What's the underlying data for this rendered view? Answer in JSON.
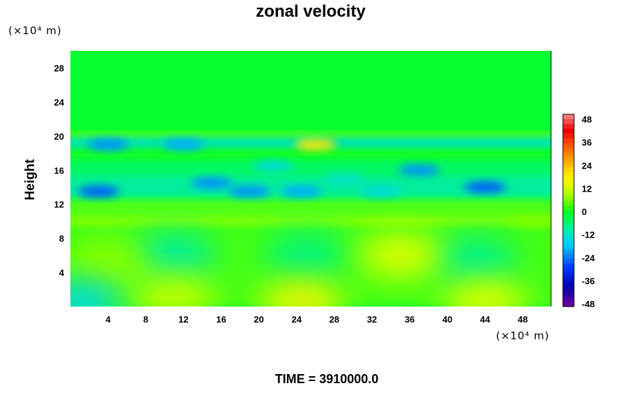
{
  "chart_data": {
    "type": "heatmap",
    "title": "zonal velocity",
    "xlabel": "",
    "ylabel": "Height",
    "x_unit": "(×10⁴ m)",
    "y_unit": "(×10⁴ m)",
    "x_ticks": [
      4,
      8,
      12,
      16,
      20,
      24,
      28,
      32,
      36,
      40,
      44,
      48
    ],
    "y_ticks": [
      4,
      8,
      12,
      16,
      20,
      24,
      28
    ],
    "xlim": [
      0,
      51
    ],
    "ylim": [
      0,
      30
    ],
    "colorbar": {
      "ticks": [
        48,
        36,
        24,
        12,
        0,
        -12,
        -24,
        -36,
        -48
      ],
      "range": [
        -48,
        48
      ]
    },
    "footer": "TIME = 3910000.0",
    "features": [
      {
        "x": 26,
        "y": 19,
        "value": 18
      },
      {
        "x": 4,
        "y": 19,
        "value": -22
      },
      {
        "x": 12,
        "y": 19,
        "value": -20
      },
      {
        "x": 3,
        "y": 13.5,
        "value": -26
      },
      {
        "x": 15,
        "y": 14.5,
        "value": -22
      },
      {
        "x": 19,
        "y": 13.5,
        "value": -22
      },
      {
        "x": 24.5,
        "y": 13.5,
        "value": -20
      },
      {
        "x": 33,
        "y": 13.5,
        "value": -14
      },
      {
        "x": 37,
        "y": 16,
        "value": -22
      },
      {
        "x": 44,
        "y": 14,
        "value": -26
      },
      {
        "x": 21.5,
        "y": 16.5,
        "value": -14
      },
      {
        "x": 29,
        "y": 15,
        "value": -12
      },
      {
        "x": 11,
        "y": 6,
        "value": -9
      },
      {
        "x": 25,
        "y": 6,
        "value": -7
      },
      {
        "x": 43,
        "y": 5.5,
        "value": -8
      },
      {
        "x": 35,
        "y": 6,
        "value": 12
      },
      {
        "x": 4,
        "y": 5,
        "value": 6
      },
      {
        "x": 11,
        "y": 1,
        "value": 10
      },
      {
        "x": 24.5,
        "y": 0.5,
        "value": 14
      },
      {
        "x": 44,
        "y": 0.5,
        "value": 12
      },
      {
        "x": 1,
        "y": 0.5,
        "value": -14
      },
      {
        "x": 49,
        "y": 10,
        "value": 5
      }
    ]
  }
}
